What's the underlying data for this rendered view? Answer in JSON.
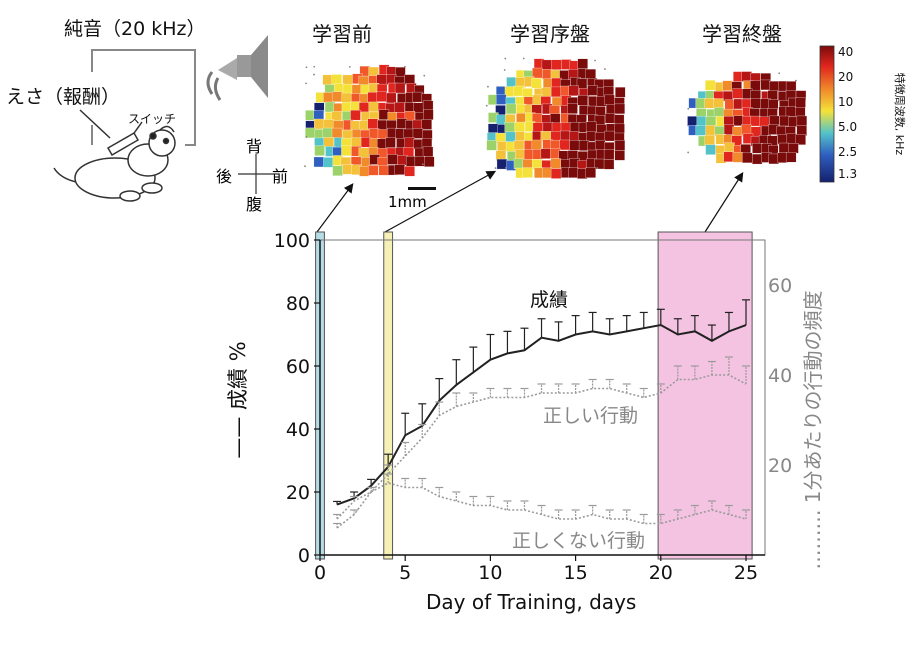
{
  "setup": {
    "tone_label": "純音（20 kHz）",
    "reward_label": "えさ（報酬）",
    "switch_label": "スイッチ"
  },
  "maps": {
    "titles": [
      "学習前",
      "学習序盤",
      "学習終盤"
    ],
    "orientation": {
      "up": "背",
      "down": "腹",
      "left": "後",
      "right": "前"
    },
    "scale_label": "1mm",
    "colorbar": {
      "title": "特徴周波数, kHz",
      "ticks": [
        "40",
        "20",
        "10",
        "5.0",
        "2.5",
        "1.3"
      ]
    }
  },
  "chart_data": {
    "type": "line",
    "xlabel": "Day of Training, days",
    "ylabel_left": "成績 %",
    "ylabel_right": "1分あたりの行動の頻度",
    "xlim": [
      0,
      25
    ],
    "ylim_left": [
      0,
      100
    ],
    "ylim_right": [
      0,
      70
    ],
    "xticks": [
      0,
      5,
      10,
      15,
      20,
      25
    ],
    "yticks_left": [
      0,
      20,
      40,
      60,
      80,
      100
    ],
    "yticks_right": [
      20,
      40,
      60
    ],
    "highlight_days": [
      {
        "from": -0.2,
        "to": 0.2,
        "color": "#a9d6e0"
      },
      {
        "from": 3.8,
        "to": 4.2,
        "color": "#f3eda8"
      },
      {
        "from": 19.9,
        "to": 25.3,
        "color": "#f2b8dc"
      }
    ],
    "series": [
      {
        "name": "成績",
        "axis": "left",
        "color": "#222222",
        "style": "solid",
        "x": [
          1,
          2,
          3,
          4,
          5,
          6,
          7,
          8,
          9,
          10,
          11,
          12,
          13,
          14,
          15,
          16,
          17,
          18,
          19,
          20,
          21,
          22,
          23,
          24,
          25
        ],
        "y": [
          16,
          18,
          22,
          28,
          38,
          41,
          49,
          54,
          58,
          62,
          64,
          65,
          69,
          68,
          70,
          71,
          70,
          71,
          72,
          73,
          70,
          71,
          68,
          71,
          73
        ],
        "err": [
          1,
          2,
          2,
          4,
          7,
          7,
          7,
          8,
          8,
          8,
          7,
          7,
          6,
          6,
          6,
          6,
          5,
          5,
          5,
          5,
          5,
          5,
          5,
          6,
          8
        ]
      },
      {
        "name": "正しい行動",
        "axis": "right",
        "color": "#9a9a9a",
        "style": "dotted",
        "x": [
          1,
          2,
          3,
          4,
          5,
          6,
          7,
          8,
          9,
          10,
          11,
          12,
          13,
          14,
          15,
          16,
          17,
          18,
          19,
          20,
          21,
          22,
          23,
          24,
          25
        ],
        "y": [
          6,
          9,
          14,
          18,
          22,
          26,
          31,
          33,
          34,
          35,
          35,
          35,
          36,
          36,
          36,
          37,
          37,
          36,
          35,
          36,
          39,
          39,
          40,
          40,
          38
        ],
        "err": [
          1,
          1,
          1,
          2,
          3,
          3,
          3,
          3,
          2,
          2,
          2,
          2,
          2,
          2,
          2,
          2,
          2,
          2,
          2,
          2,
          3,
          3,
          3,
          4,
          4
        ]
      },
      {
        "name": "正しくない行動",
        "axis": "right",
        "color": "#9a9a9a",
        "style": "dotted",
        "x": [
          1,
          2,
          3,
          4,
          5,
          6,
          7,
          8,
          9,
          10,
          11,
          12,
          13,
          14,
          15,
          16,
          17,
          18,
          19,
          20,
          21,
          22,
          23,
          24,
          25
        ],
        "y": [
          8,
          12,
          14,
          16,
          15,
          15,
          13,
          12,
          11,
          11,
          10,
          10,
          9,
          8,
          8,
          9,
          8,
          8,
          7,
          7,
          8,
          9,
          10,
          9,
          8
        ],
        "err": [
          1,
          1,
          1,
          2,
          2,
          2,
          2,
          2,
          2,
          2,
          2,
          2,
          2,
          2,
          2,
          2,
          2,
          2,
          2,
          2,
          2,
          2,
          2,
          2,
          2
        ]
      }
    ]
  }
}
